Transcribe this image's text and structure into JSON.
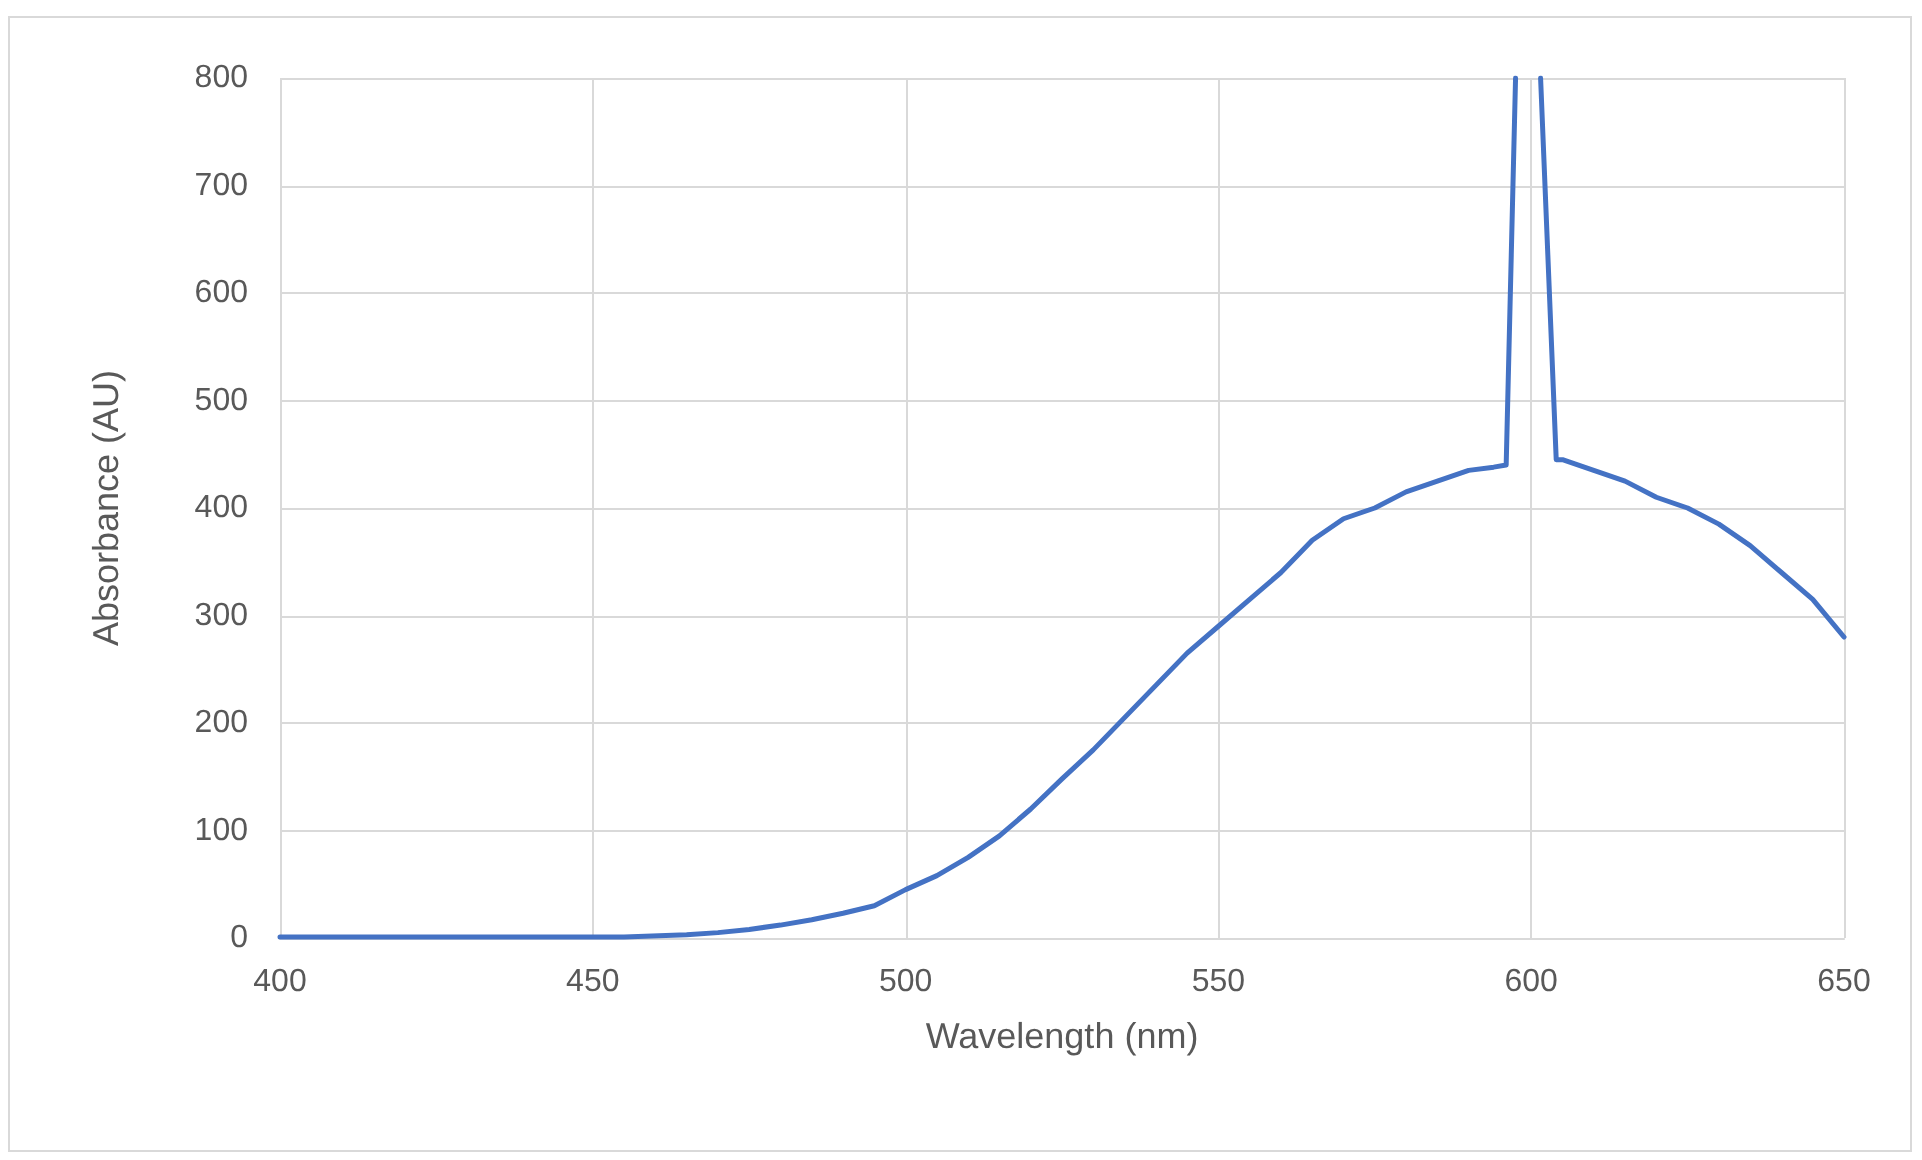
{
  "chart_data": {
    "type": "line",
    "xlabel": "Wavelength (nm)",
    "ylabel": "Absorbance (AU)",
    "x": [
      400,
      420,
      440,
      455,
      465,
      470,
      475,
      480,
      485,
      490,
      495,
      500,
      505,
      510,
      515,
      520,
      525,
      530,
      535,
      540,
      545,
      550,
      555,
      560,
      565,
      570,
      575,
      580,
      585,
      590,
      594,
      596,
      597.5,
      600,
      601.5,
      604,
      605,
      610,
      615,
      620,
      625,
      630,
      635,
      640,
      645,
      650
    ],
    "series": [
      {
        "color": "#4472c4",
        "values": [
          1,
          1,
          1,
          1,
          3,
          5,
          8,
          12,
          17,
          23,
          30,
          45,
          58,
          75,
          95,
          120,
          148,
          175,
          205,
          235,
          265,
          290,
          315,
          340,
          370,
          390,
          400,
          415,
          425,
          435,
          438,
          440,
          800,
          null,
          800,
          445,
          445,
          435,
          425,
          410,
          400,
          385,
          365,
          340,
          315,
          280
        ]
      }
    ],
    "xlim": [
      400,
      650
    ],
    "xticks": [
      400,
      450,
      500,
      550,
      600,
      650
    ],
    "ylim": [
      0,
      800
    ],
    "yticks": [
      0,
      100,
      200,
      300,
      400,
      500,
      600,
      700,
      800
    ],
    "grid": true,
    "marker": "none",
    "line_style": "solid"
  }
}
